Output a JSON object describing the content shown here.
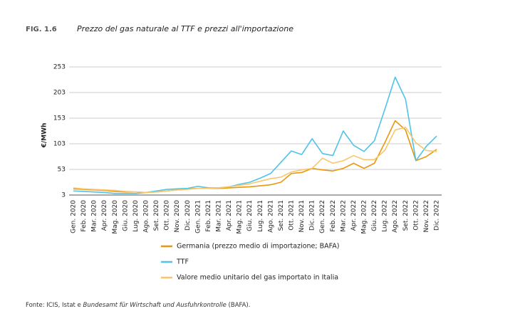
{
  "chart_data": {
    "type": "line",
    "figure_label": "FIG. 1.6",
    "title": "Prezzo del gas naturale al TTF e prezzi all'importazione",
    "y_label": "€/MWh",
    "categories": [
      "Gen. 2020",
      "Feb. 2020",
      "Mar. 2020",
      "Apr. 2020",
      "Mag. 2020",
      "Giu. 2020",
      "Lug. 2020",
      "Ago. 2020",
      "Set. 2020",
      "Ott. 2020",
      "Nov. 2020",
      "Dic. 2020",
      "Gen. 2021",
      "Feb. 2021",
      "Mar. 2021",
      "Apr. 2021",
      "Mag. 2021",
      "Giu. 2021",
      "Lug. 2021",
      "Ago. 2021",
      "Set. 2021",
      "Ott. 2021",
      "Nov. 2021",
      "Dic. 2021",
      "Gen. 2022",
      "Feb. 2022",
      "Mar. 2022",
      "Apr. 2022",
      "Mag. 2022",
      "Giu. 2022",
      "Lug. 2022",
      "Ago. 2022",
      "Set. 2022",
      "Ott. 2022",
      "Nov. 2022",
      "Dic. 2022"
    ],
    "series": [
      {
        "name": "Germania (prezzo medio di importazione; BAFA)",
        "color": "#e8970e",
        "values": [
          15,
          14,
          13,
          12,
          10,
          9,
          9,
          8,
          9,
          11,
          13,
          15,
          16,
          16,
          16,
          17,
          18,
          19,
          21,
          23,
          28,
          45,
          47,
          55,
          52,
          50,
          55,
          65,
          55,
          65,
          105,
          148,
          130,
          70,
          78,
          92
        ]
      },
      {
        "name": "TTF",
        "color": "#4fc3e8",
        "values": [
          11,
          10,
          9,
          8,
          6,
          6,
          6,
          8,
          11,
          14,
          15,
          16,
          20,
          17,
          17,
          19,
          24,
          28,
          36,
          45,
          67,
          89,
          82,
          113,
          84,
          80,
          128,
          100,
          88,
          109,
          170,
          233,
          190,
          70,
          98,
          118
        ]
      },
      {
        "name": "Valore medio unitario del gas importato in Italia",
        "color": "#f9c66b",
        "values": [
          17,
          15,
          14,
          13,
          12,
          10,
          9,
          8,
          9,
          11,
          13,
          14,
          16,
          16,
          17,
          19,
          22,
          25,
          30,
          35,
          38,
          48,
          52,
          55,
          75,
          65,
          70,
          80,
          72,
          72,
          90,
          130,
          135,
          105,
          90,
          88
        ]
      }
    ],
    "ylim": [
      3,
      253
    ],
    "yticks": [
      3,
      53,
      103,
      153,
      203,
      253
    ],
    "grid": true,
    "source": [
      "Fonte: ICIS, Istat e",
      "Bundesamt für Wirtschaft und Ausfuhrkontrolle",
      "(BAFA)."
    ]
  }
}
